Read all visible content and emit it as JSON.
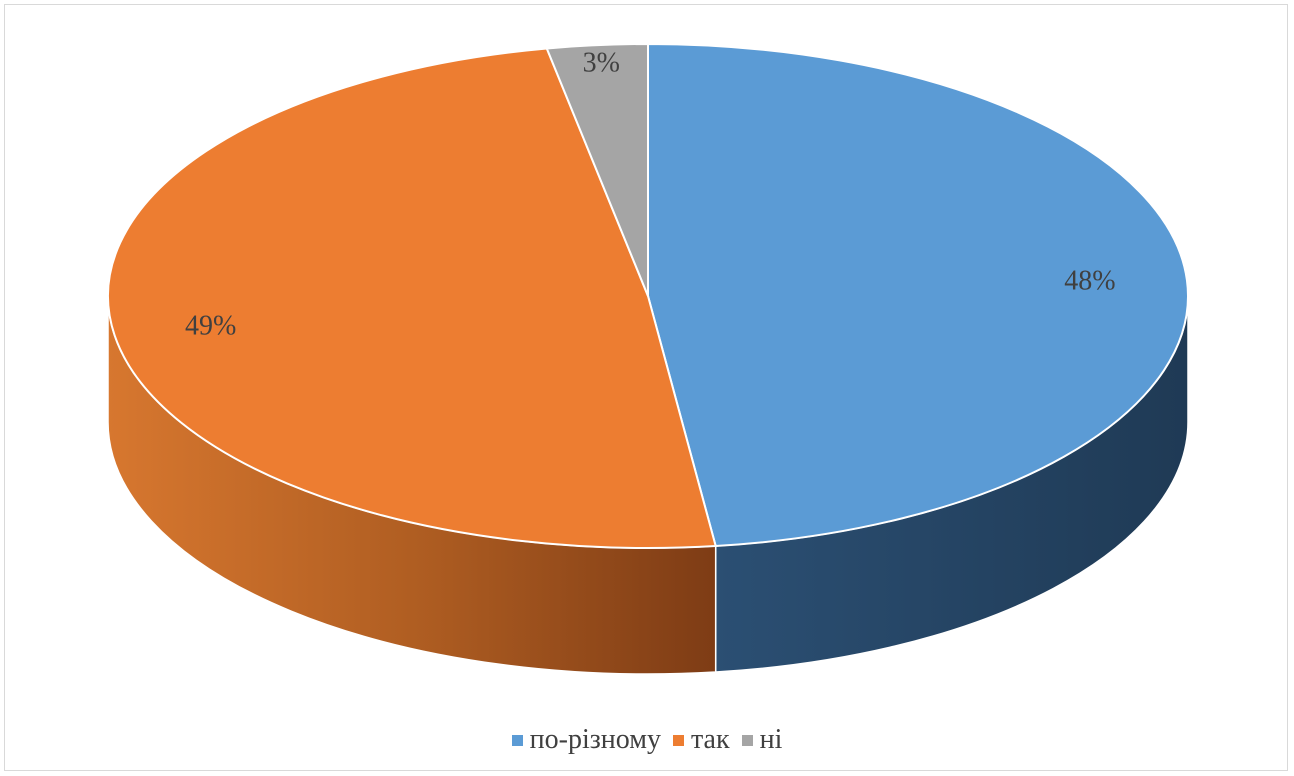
{
  "chart_data": {
    "type": "pie",
    "title": "",
    "style": "3d-pie",
    "legend_position": "bottom",
    "categories": [
      "по-різному",
      "так",
      "ні"
    ],
    "values": [
      48,
      49,
      3
    ],
    "labels": [
      "48%",
      "49%",
      "3%"
    ],
    "colors": [
      "#5b9bd5",
      "#ed7d31",
      "#a5a5a5"
    ],
    "side_colors": [
      "#223d58",
      "#87401a",
      "#6a6a6a"
    ]
  }
}
